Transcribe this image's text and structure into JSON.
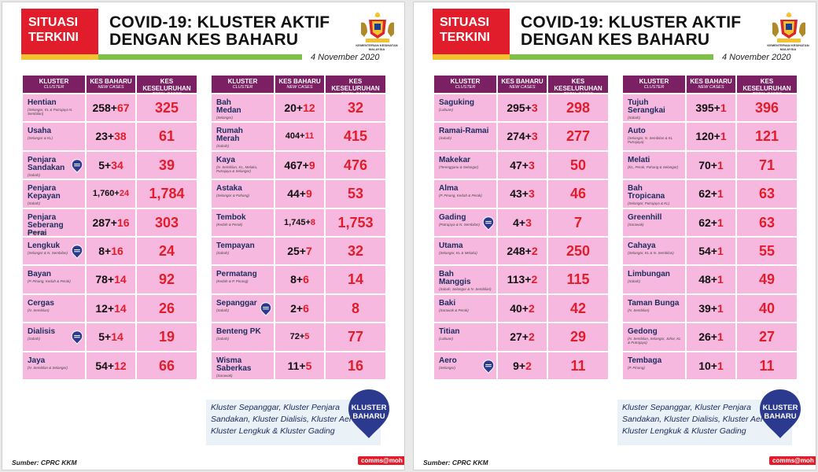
{
  "badge": {
    "line1": "SITUASI",
    "line2": "TERKINI"
  },
  "title": {
    "line1": "COVID-19: KLUSTER AKTIF",
    "line2": "DENGAN KES BAHARU"
  },
  "ministry": "KEMENTERIAN KESIHATAN MALAYSIA",
  "date": "4 November 2020",
  "headers": {
    "kluster": "KLUSTER",
    "kluster_sub": "CLUSTER",
    "new": "KES BAHARU",
    "new_sub": "NEW CASES",
    "total": "KES KESELURUHAN",
    "total_sub": "TOTAL CASES"
  },
  "bubble": {
    "line1": "KLUSTER",
    "line2": "BAHARU"
  },
  "note": "Kluster Sepanggar, Kluster Penjara Sandakan, Kluster Dialisis, Kluster Aero, Kluster Lengkuk & Kluster Gading",
  "source": "Sumber: CPRC KKM",
  "brand": "comms@moh",
  "panels": [
    {
      "left": [
        {
          "name": [
            "Hentian"
          ],
          "loc": "(Selangor, KL & Putrajaya N. Sembilan)",
          "base": "258+",
          "add": "67",
          "total": "325",
          "new_badge": false
        },
        {
          "name": [
            "Usaha"
          ],
          "loc": "(Selangor & KL)",
          "base": "23+",
          "add": "38",
          "total": "61",
          "new_badge": false
        },
        {
          "name": [
            "Penjara",
            "Sandakan"
          ],
          "loc": "(Sabah)",
          "base": "5+",
          "add": "34",
          "total": "39",
          "new_badge": true
        },
        {
          "name": [
            "Penjara",
            "Kepayan"
          ],
          "loc": "(Sabah)",
          "base": "1,760+",
          "add": "24",
          "total": "1,784",
          "new_badge": false,
          "small": true
        },
        {
          "name": [
            "Penjara",
            "Seberang Perai"
          ],
          "loc": "(P. Pinang)",
          "base": "287+",
          "add": "16",
          "total": "303",
          "new_badge": false
        },
        {
          "name": [
            "Lengkuk"
          ],
          "loc": "(Selangor & N. Sembilan)",
          "base": "8+",
          "add": "16",
          "total": "24",
          "new_badge": true
        },
        {
          "name": [
            "Bayan"
          ],
          "loc": "(P. Pinang, Kedah & Perak)",
          "base": "78+",
          "add": "14",
          "total": "92",
          "new_badge": false
        },
        {
          "name": [
            "Cergas"
          ],
          "loc": "(N. Sembilan)",
          "base": "12+",
          "add": "14",
          "total": "26",
          "new_badge": false
        },
        {
          "name": [
            "Dialisis"
          ],
          "loc": "(Sabah)",
          "base": "5+",
          "add": "14",
          "total": "19",
          "new_badge": true
        },
        {
          "name": [
            "Jaya"
          ],
          "loc": "(N. Sembilan & Selangor)",
          "base": "54+",
          "add": "12",
          "total": "66",
          "new_badge": false
        }
      ],
      "right": [
        {
          "name": [
            "Bah",
            "Medan"
          ],
          "loc": "(Selangor)",
          "base": "20+",
          "add": "12",
          "total": "32",
          "new_badge": false
        },
        {
          "name": [
            "Rumah",
            "Merah"
          ],
          "loc": "(Sabah)",
          "base": "404+",
          "add": "11",
          "total": "415",
          "new_badge": false,
          "small": true
        },
        {
          "name": [
            "Kaya"
          ],
          "loc": "(N. Sembilan, KL, Melaka, Putrajaya & Selangor)",
          "base": "467+",
          "add": "9",
          "total": "476",
          "new_badge": false
        },
        {
          "name": [
            "Astaka"
          ],
          "loc": "(Selangor & Pahang)",
          "base": "44+",
          "add": "9",
          "total": "53",
          "new_badge": false
        },
        {
          "name": [
            "Tembok"
          ],
          "loc": "(Kedah & Perak)",
          "base": "1,745+",
          "add": "8",
          "total": "1,753",
          "new_badge": false,
          "small": true
        },
        {
          "name": [
            "Tempayan"
          ],
          "loc": "(Sabah)",
          "base": "25+",
          "add": "7",
          "total": "32",
          "new_badge": false
        },
        {
          "name": [
            "Permatang"
          ],
          "loc": "(Kedah & P. Pinang)",
          "base": "8+",
          "add": "6",
          "total": "14",
          "new_badge": false
        },
        {
          "name": [
            "Sepanggar"
          ],
          "loc": "(Sabah)",
          "base": "2+",
          "add": "6",
          "total": "8",
          "new_badge": true
        },
        {
          "name": [
            "Benteng PK"
          ],
          "loc": "(Sabah)",
          "base": "72+",
          "add": "5",
          "total": "77",
          "new_badge": false,
          "small": true
        },
        {
          "name": [
            "Wisma",
            "Saberkas"
          ],
          "loc": "(Sarawak)",
          "base": "11+",
          "add": "5",
          "total": "16",
          "new_badge": false
        }
      ]
    },
    {
      "left": [
        {
          "name": [
            "Saguking"
          ],
          "loc": "(Labuan)",
          "base": "295+",
          "add": "3",
          "total": "298",
          "new_badge": false
        },
        {
          "name": [
            "Ramai-Ramai"
          ],
          "loc": "(Sabah)",
          "base": "274+",
          "add": "3",
          "total": "277",
          "new_badge": false
        },
        {
          "name": [
            "Makekar"
          ],
          "loc": "(Terengganu & Selangor)",
          "base": "47+",
          "add": "3",
          "total": "50",
          "new_badge": false
        },
        {
          "name": [
            "Alma"
          ],
          "loc": "(P. Pinang, Kedah & Perak)",
          "base": "43+",
          "add": "3",
          "total": "46",
          "new_badge": false
        },
        {
          "name": [
            "Gading"
          ],
          "loc": "(Putrajaya & N. Sembilan)",
          "base": "4+",
          "add": "3",
          "total": "7",
          "new_badge": true
        },
        {
          "name": [
            "Utama"
          ],
          "loc": "(Selangor, KL & Melaka)",
          "base": "248+",
          "add": "2",
          "total": "250",
          "new_badge": false
        },
        {
          "name": [
            "Bah",
            "Manggis"
          ],
          "loc": "(Sabah, Selangor & N. Sembilan)",
          "base": "113+",
          "add": "2",
          "total": "115",
          "new_badge": false
        },
        {
          "name": [
            "Baki"
          ],
          "loc": "(Sarawak & Perak)",
          "base": "40+",
          "add": "2",
          "total": "42",
          "new_badge": false
        },
        {
          "name": [
            "Titian"
          ],
          "loc": "(Labuan)",
          "base": "27+",
          "add": "2",
          "total": "29",
          "new_badge": false
        },
        {
          "name": [
            "Aero"
          ],
          "loc": "(Selangor)",
          "base": "9+",
          "add": "2",
          "total": "11",
          "new_badge": true
        }
      ],
      "right": [
        {
          "name": [
            "Tujuh",
            "Serangkai"
          ],
          "loc": "(Sabah)",
          "base": "395+",
          "add": "1",
          "total": "396",
          "new_badge": false
        },
        {
          "name": [
            "Auto"
          ],
          "loc": "(Selangor, N. Sembilan & KL Putrajaya)",
          "base": "120+",
          "add": "1",
          "total": "121",
          "new_badge": false
        },
        {
          "name": [
            "Melati"
          ],
          "loc": "(KL, Perak, Pahang & Selangor)",
          "base": "70+",
          "add": "1",
          "total": "71",
          "new_badge": false
        },
        {
          "name": [
            "Bah",
            "Tropicana"
          ],
          "loc": "(Selangor, Putrajaya & KL)",
          "base": "62+",
          "add": "1",
          "total": "63",
          "new_badge": false
        },
        {
          "name": [
            "Greenhill"
          ],
          "loc": "(Sarawak)",
          "base": "62+",
          "add": "1",
          "total": "63",
          "new_badge": false
        },
        {
          "name": [
            "Cahaya"
          ],
          "loc": "(Selangor, KL & N. Sembilan)",
          "base": "54+",
          "add": "1",
          "total": "55",
          "new_badge": false
        },
        {
          "name": [
            "Limbungan"
          ],
          "loc": "(Sabah)",
          "base": "48+",
          "add": "1",
          "total": "49",
          "new_badge": false
        },
        {
          "name": [
            "Taman Bunga"
          ],
          "loc": "(N. Sembilan)",
          "base": "39+",
          "add": "1",
          "total": "40",
          "new_badge": false
        },
        {
          "name": [
            "Gedong"
          ],
          "loc": "(N. Sembilan, Selangor, Johor, KL & Putrajaya)",
          "base": "26+",
          "add": "1",
          "total": "27",
          "new_badge": false
        },
        {
          "name": [
            "Tembaga"
          ],
          "loc": "(P. Pinang)",
          "base": "10+",
          "add": "1",
          "total": "11",
          "new_badge": false
        }
      ]
    }
  ]
}
